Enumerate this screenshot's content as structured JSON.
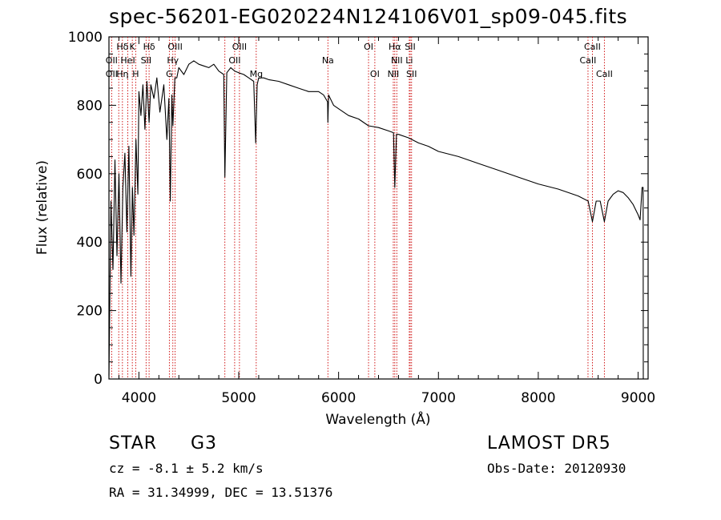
{
  "chart_data": {
    "type": "line",
    "title": "spec-56201-EG020224N124106V01_sp09-045.fits",
    "xlabel": "Wavelength (Å)",
    "ylabel": "Flux (relative)",
    "xlim": [
      3700,
      9100
    ],
    "ylim": [
      0,
      1000
    ],
    "xticks": [
      4000,
      5000,
      6000,
      7000,
      8000,
      9000
    ],
    "yticks": [
      0,
      200,
      400,
      600,
      800,
      1000
    ],
    "grid": false,
    "line_colors": {
      "spectrum": "#000000",
      "lines": "#cc0000"
    },
    "series": [
      {
        "x": [
          3700,
          3720,
          3740,
          3760,
          3780,
          3800,
          3820,
          3840,
          3860,
          3880,
          3900,
          3920,
          3935,
          3950,
          3970,
          3990,
          4000,
          4020,
          4040,
          4060,
          4080,
          4102,
          4120,
          4150,
          4180,
          4210,
          4250,
          4280,
          4300,
          4315,
          4330,
          4340,
          4360,
          4380,
          4400,
          4450,
          4500,
          4550,
          4600,
          4650,
          4700,
          4750,
          4800,
          4850,
          4861,
          4880,
          4920,
          4960,
          5000,
          5050,
          5100,
          5150,
          5170,
          5184,
          5200,
          5250,
          5300,
          5400,
          5500,
          5600,
          5700,
          5800,
          5850,
          5890,
          5893,
          5900,
          5950,
          6000,
          6100,
          6200,
          6300,
          6400,
          6500,
          6550,
          6563,
          6580,
          6600,
          6700,
          6800,
          6900,
          7000,
          7200,
          7400,
          7600,
          7800,
          8000,
          8200,
          8400,
          8500,
          8542,
          8580,
          8620,
          8662,
          8700,
          8750,
          8800,
          8850,
          8900,
          8950,
          9000,
          9020,
          9040,
          9050,
          9052
        ],
        "values": [
          10,
          520,
          320,
          640,
          360,
          600,
          280,
          560,
          660,
          430,
          680,
          300,
          560,
          420,
          700,
          540,
          840,
          770,
          860,
          730,
          870,
          750,
          860,
          820,
          880,
          780,
          860,
          700,
          820,
          520,
          830,
          740,
          880,
          880,
          910,
          890,
          920,
          930,
          920,
          915,
          910,
          920,
          900,
          890,
          590,
          895,
          910,
          900,
          895,
          890,
          880,
          870,
          690,
          860,
          880,
          880,
          875,
          870,
          860,
          850,
          840,
          840,
          830,
          810,
          750,
          830,
          800,
          790,
          770,
          760,
          740,
          735,
          725,
          720,
          560,
          715,
          715,
          705,
          690,
          680,
          665,
          650,
          630,
          610,
          590,
          570,
          555,
          535,
          520,
          460,
          520,
          520,
          460,
          520,
          540,
          550,
          545,
          530,
          510,
          480,
          465,
          560,
          560,
          0
        ]
      }
    ],
    "annotations": [
      {
        "label": "Hδ",
        "x": 3835,
        "row": 1
      },
      {
        "label": "K",
        "x": 3934,
        "row": 1
      },
      {
        "label": "Hδ",
        "x": 4102,
        "row": 1
      },
      {
        "label": "OIII",
        "x": 4363,
        "row": 1
      },
      {
        "label": "OIII",
        "x": 5007,
        "row": 1
      },
      {
        "label": "OI",
        "x": 6300,
        "row": 1
      },
      {
        "label": "Hα",
        "x": 6563,
        "row": 1
      },
      {
        "label": "SII",
        "x": 6717,
        "row": 1
      },
      {
        "label": "CaII",
        "x": 8542,
        "row": 1
      },
      {
        "label": "OII",
        "x": 3727,
        "row": 2
      },
      {
        "label": "HeI",
        "x": 3889,
        "row": 2
      },
      {
        "label": "SII",
        "x": 4072,
        "row": 2
      },
      {
        "label": "Hγ",
        "x": 4340,
        "row": 2
      },
      {
        "label": "OII",
        "x": 4959,
        "row": 2
      },
      {
        "label": "Na",
        "x": 5893,
        "row": 2
      },
      {
        "label": "NII",
        "x": 6583,
        "row": 2
      },
      {
        "label": "Li",
        "x": 6708,
        "row": 2
      },
      {
        "label": "CaII",
        "x": 8498,
        "row": 2
      },
      {
        "label": "OII",
        "x": 3727,
        "row": 3
      },
      {
        "label": "Hη",
        "x": 3835,
        "row": 3
      },
      {
        "label": "H",
        "x": 3968,
        "row": 3
      },
      {
        "label": "G",
        "x": 4305,
        "row": 3
      },
      {
        "label": "Mg",
        "x": 5175,
        "row": 3
      },
      {
        "label": "OI",
        "x": 6363,
        "row": 3
      },
      {
        "label": "NII",
        "x": 6548,
        "row": 3
      },
      {
        "label": "SII",
        "x": 6731,
        "row": 3
      },
      {
        "label": "CaII",
        "x": 8662,
        "row": 3
      }
    ],
    "line_markers": [
      3727,
      3798,
      3835,
      3889,
      3934,
      3968,
      4072,
      4102,
      4305,
      4340,
      4363,
      4861,
      4959,
      5007,
      5175,
      5893,
      6300,
      6363,
      6548,
      6563,
      6583,
      6708,
      6717,
      6731,
      8498,
      8542,
      8662
    ]
  },
  "footer": {
    "object_class": "STAR",
    "subclass": "G3",
    "survey": "LAMOST  DR5",
    "velocity": "cz = -8.1 ± 5.2 km/s",
    "obs_date": "Obs-Date: 20120930",
    "coords": "RA =  31.34999, DEC =  13.51376"
  }
}
